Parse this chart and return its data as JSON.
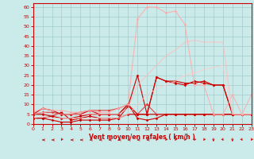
{
  "xlabel": "Vent moyen/en rafales ( km/h )",
  "bg_color": "#cbeaea",
  "grid_color": "#a0cccc",
  "x_ticks": [
    0,
    1,
    2,
    3,
    4,
    5,
    6,
    7,
    8,
    9,
    10,
    11,
    12,
    13,
    14,
    15,
    16,
    17,
    18,
    19,
    20,
    21,
    22,
    23
  ],
  "y_ticks": [
    0,
    5,
    10,
    15,
    20,
    25,
    30,
    35,
    40,
    45,
    50,
    55,
    60
  ],
  "ylim": [
    0,
    62
  ],
  "xlim": [
    0,
    23
  ],
  "lines": [
    {
      "x": [
        0,
        1,
        2,
        3,
        4,
        5,
        6,
        7,
        8,
        9,
        10,
        11,
        12,
        13,
        14,
        15,
        16,
        17,
        18,
        19,
        20,
        21,
        22,
        23
      ],
      "y": [
        3,
        3,
        2,
        1,
        1,
        2,
        2,
        2,
        2,
        3,
        9,
        25,
        5,
        24,
        22,
        21,
        20,
        22,
        21,
        20,
        20,
        5,
        5,
        5
      ],
      "color": "#cc0000",
      "marker": "D",
      "markersize": 1.5,
      "linewidth": 0.8,
      "alpha": 1.0
    },
    {
      "x": [
        0,
        1,
        2,
        3,
        4,
        5,
        6,
        7,
        8,
        9,
        10,
        11,
        12,
        13,
        14,
        15,
        16,
        17,
        18,
        19,
        20,
        21,
        22,
        23
      ],
      "y": [
        5,
        5,
        4,
        3,
        3,
        4,
        5,
        5,
        5,
        5,
        10,
        5,
        5,
        5,
        5,
        5,
        5,
        5,
        5,
        5,
        5,
        5,
        5,
        5
      ],
      "color": "#cc0000",
      "marker": "D",
      "markersize": 1.5,
      "linewidth": 0.8,
      "alpha": 1.0
    },
    {
      "x": [
        0,
        1,
        2,
        3,
        4,
        5,
        6,
        7,
        8,
        9,
        10,
        11,
        12,
        13,
        14,
        15,
        16,
        17,
        18,
        19,
        20,
        21,
        22,
        23
      ],
      "y": [
        5,
        6,
        6,
        5,
        5,
        6,
        7,
        7,
        7,
        8,
        10,
        5,
        10,
        5,
        5,
        5,
        5,
        5,
        5,
        5,
        5,
        5,
        5,
        5
      ],
      "color": "#dd3333",
      "marker": "D",
      "markersize": 1.5,
      "linewidth": 0.8,
      "alpha": 0.9
    },
    {
      "x": [
        0,
        1,
        2,
        3,
        4,
        5,
        6,
        7,
        8,
        9,
        10,
        11,
        12,
        13,
        14,
        15,
        16,
        17,
        18,
        19,
        20,
        21,
        22,
        23
      ],
      "y": [
        5,
        8,
        7,
        5,
        5,
        5,
        7,
        5,
        5,
        5,
        10,
        3,
        2,
        3,
        5,
        5,
        5,
        5,
        5,
        5,
        5,
        5,
        5,
        5
      ],
      "color": "#cc0000",
      "marker": "D",
      "markersize": 1.5,
      "linewidth": 0.8,
      "alpha": 1.0
    },
    {
      "x": [
        0,
        1,
        2,
        3,
        4,
        5,
        6,
        7,
        8,
        9,
        10,
        11,
        12,
        13,
        14,
        15,
        16,
        17,
        18,
        19,
        20,
        21,
        22,
        23
      ],
      "y": [
        3,
        3,
        4,
        6,
        2,
        3,
        4,
        3,
        3,
        3,
        5,
        5,
        5,
        24,
        22,
        22,
        21,
        21,
        22,
        20,
        20,
        5,
        5,
        5
      ],
      "color": "#cc0000",
      "marker": "D",
      "markersize": 1.5,
      "linewidth": 0.8,
      "alpha": 1.0
    },
    {
      "x": [
        0,
        1,
        2,
        3,
        4,
        5,
        6,
        7,
        8,
        9,
        10,
        11,
        12,
        13,
        14,
        15,
        16,
        17,
        18,
        19,
        20,
        21,
        22,
        23
      ],
      "y": [
        6,
        8,
        7,
        7,
        6,
        6,
        7,
        6,
        6,
        8,
        10,
        54,
        60,
        60,
        57,
        58,
        51,
        20,
        20,
        5,
        5,
        15,
        5,
        15
      ],
      "color": "#ffaaaa",
      "marker": "D",
      "markersize": 1.5,
      "linewidth": 0.8,
      "alpha": 0.85
    },
    {
      "x": [
        0,
        1,
        2,
        3,
        4,
        5,
        6,
        7,
        8,
        9,
        10,
        11,
        12,
        13,
        14,
        15,
        16,
        17,
        18,
        19,
        20,
        21,
        22,
        23
      ],
      "y": [
        5,
        6,
        5,
        5,
        5,
        5,
        5,
        5,
        5,
        5,
        8,
        20,
        25,
        30,
        35,
        38,
        42,
        43,
        42,
        42,
        42,
        5,
        5,
        5
      ],
      "color": "#ffbbbb",
      "marker": null,
      "markersize": 0,
      "linewidth": 0.8,
      "alpha": 0.75
    },
    {
      "x": [
        0,
        1,
        2,
        3,
        4,
        5,
        6,
        7,
        8,
        9,
        10,
        11,
        12,
        13,
        14,
        15,
        16,
        17,
        18,
        19,
        20,
        21,
        22,
        23
      ],
      "y": [
        3,
        4,
        3,
        3,
        3,
        3,
        3,
        3,
        3,
        3,
        5,
        10,
        15,
        18,
        20,
        22,
        25,
        26,
        28,
        29,
        30,
        5,
        5,
        5
      ],
      "color": "#ffcccc",
      "marker": null,
      "markersize": 0,
      "linewidth": 0.8,
      "alpha": 0.75
    }
  ],
  "wind_arrows": {
    "x": [
      0,
      1,
      2,
      3,
      4,
      5,
      6,
      7,
      8,
      9,
      10,
      11,
      12,
      13,
      14,
      15,
      16,
      17,
      18,
      19,
      20,
      21,
      22,
      23
    ],
    "angles_deg": [
      270,
      270,
      270,
      225,
      270,
      270,
      270,
      270,
      270,
      270,
      270,
      270,
      270,
      225,
      225,
      225,
      225,
      225,
      225,
      180,
      135,
      180,
      135,
      225
    ]
  }
}
